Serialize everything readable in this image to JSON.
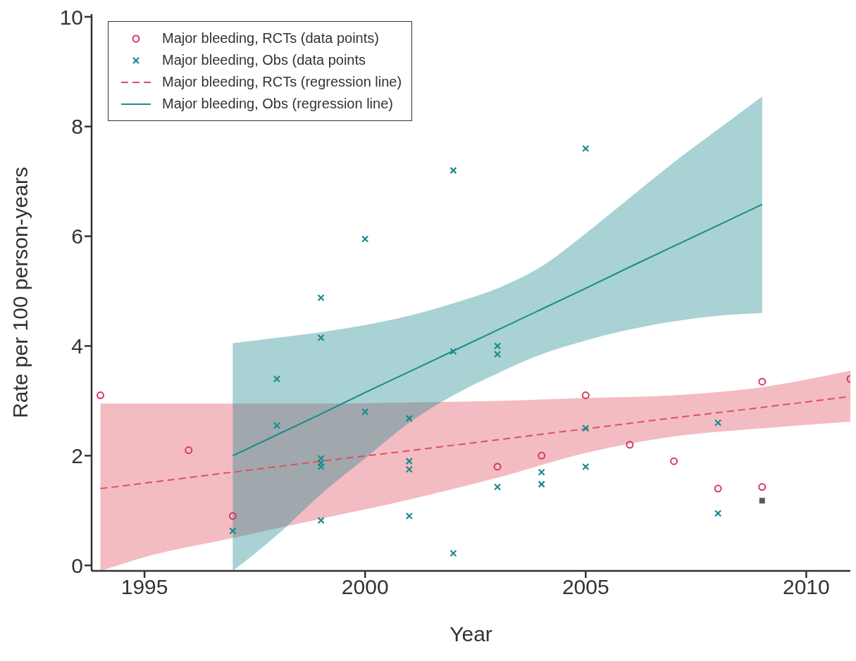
{
  "chart_data": {
    "type": "scatter",
    "xlabel": "Year",
    "ylabel": "Rate per 100 person-years",
    "xlim": [
      1993.8,
      2011
    ],
    "xticks": [
      1995,
      2000,
      2005,
      2010
    ],
    "ylim": [
      -0.1,
      10.05
    ],
    "yticks": [
      0,
      2,
      4,
      6,
      8,
      10
    ],
    "grid": false,
    "legend": "top left",
    "series": [
      {
        "name": "Major bleeding, RCTs (data points)",
        "color": "#d33a5c",
        "marker": "circle",
        "x": [
          1994,
          1996,
          1997,
          2003,
          2004,
          2005,
          2006,
          2007,
          2008,
          2009,
          2009,
          2011
        ],
        "values": [
          3.1,
          2.1,
          0.9,
          1.8,
          2.0,
          3.1,
          2.2,
          1.9,
          1.4,
          3.35,
          1.43,
          3.4
        ]
      },
      {
        "name": "Major bleeding, Obs (data points",
        "color": "#1b8a8c",
        "marker": "cross",
        "x": [
          1997,
          1998,
          1998,
          1999,
          1999,
          1999,
          1999,
          1999,
          1999,
          2000,
          2000,
          2001,
          2001,
          2001,
          2001,
          2002,
          2002,
          2002,
          2003,
          2003,
          2003,
          2004,
          2004,
          2005,
          2005,
          2005,
          2008,
          2008
        ],
        "values": [
          0.63,
          3.4,
          2.55,
          4.88,
          4.15,
          1.95,
          1.87,
          1.8,
          0.82,
          5.95,
          2.8,
          2.68,
          1.9,
          1.75,
          0.9,
          7.2,
          3.9,
          0.22,
          4.0,
          3.85,
          1.43,
          1.7,
          1.48,
          7.6,
          2.5,
          1.8,
          2.6,
          0.95
        ]
      },
      {
        "color": "#5a5a5a",
        "marker": "square",
        "x": [
          2009
        ],
        "values": [
          1.18
        ]
      },
      {
        "type": "line",
        "name": "Major bleeding, RCTs (regression line)",
        "color": "#e0505e",
        "line_style": "dashed",
        "marker": "none",
        "x": [
          1994,
          1995,
          1997,
          1999,
          2001,
          2003,
          2005,
          2007,
          2009,
          2011
        ],
        "values": [
          1.4,
          1.5,
          1.7,
          1.9,
          2.09,
          2.29,
          2.49,
          2.69,
          2.88,
          3.08
        ],
        "lower": [
          -0.1,
          0.15,
          0.5,
          0.85,
          1.2,
          1.6,
          2.05,
          2.35,
          2.5,
          2.62
        ],
        "upper": [
          2.95,
          2.95,
          2.95,
          2.95,
          2.97,
          3.0,
          3.05,
          3.1,
          3.25,
          3.55
        ]
      },
      {
        "type": "line",
        "name": "Major bleeding, Obs (regression line)",
        "color": "#1b8a8c",
        "line_style": "solid",
        "marker": "none",
        "x": [
          1997,
          1998,
          1999,
          2000,
          2001,
          2002,
          2003,
          2004,
          2005,
          2006,
          2007,
          2008,
          2009
        ],
        "values": [
          2.0,
          2.38,
          2.76,
          3.15,
          3.53,
          3.91,
          4.29,
          4.67,
          5.05,
          5.44,
          5.82,
          6.2,
          6.58
        ],
        "lower": [
          -0.1,
          0.55,
          1.3,
          1.95,
          2.6,
          3.1,
          3.5,
          3.85,
          4.1,
          4.3,
          4.45,
          4.55,
          4.6
        ],
        "upper": [
          4.05,
          4.15,
          4.25,
          4.38,
          4.55,
          4.78,
          5.05,
          5.45,
          6.05,
          6.7,
          7.35,
          7.95,
          8.55
        ]
      }
    ]
  }
}
